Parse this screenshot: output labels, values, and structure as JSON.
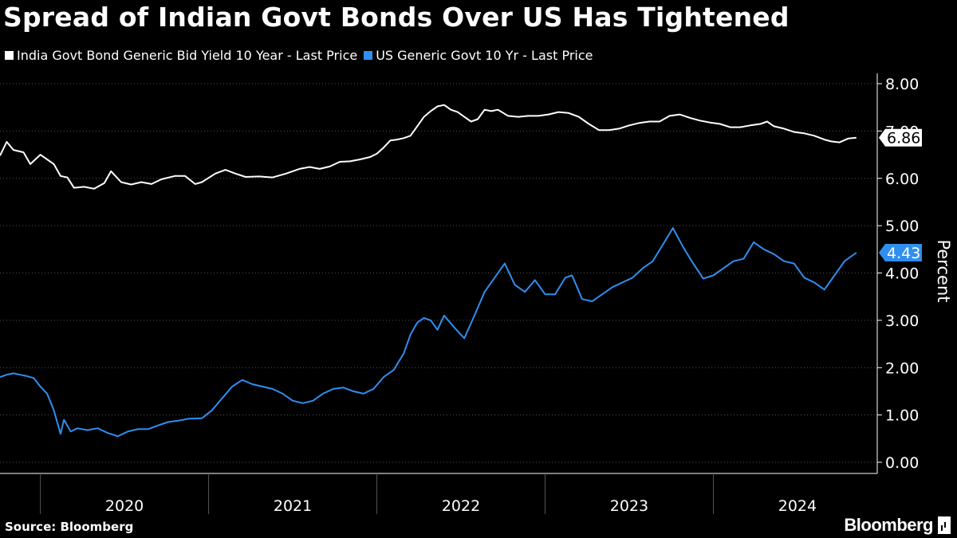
{
  "title": "Spread of Indian Govt Bonds Over US Has Tightened",
  "source": "Source: Bloomberg",
  "brand": "Bloomberg",
  "colors": {
    "india": "#ffffff",
    "us": "#2f8ff0",
    "background": "#000000",
    "grid": "#555555"
  },
  "chart_data": {
    "type": "line",
    "title": "Spread of Indian Govt Bonds Over US Has Tightened",
    "ylabel": "Percent",
    "ylim": [
      0,
      8
    ],
    "yticks": [
      "0.00",
      "1.00",
      "2.00",
      "3.00",
      "4.00",
      "5.00",
      "6.00",
      "7.00",
      "8.00"
    ],
    "xlim": [
      2019.76,
      2024.87
    ],
    "xticks": [
      "2020",
      "2021",
      "2022",
      "2023",
      "2024"
    ],
    "grid": true,
    "legend_position": "top-left",
    "series": [
      {
        "name": "India Govt Bond Generic Bid Yield 10 Year - Last Price",
        "color": "#ffffff",
        "last_value": "6.86",
        "points": [
          [
            2019.76,
            6.48
          ],
          [
            2019.8,
            6.77
          ],
          [
            2019.84,
            6.6
          ],
          [
            2019.9,
            6.55
          ],
          [
            2019.94,
            6.3
          ],
          [
            2020.0,
            6.5
          ],
          [
            2020.04,
            6.4
          ],
          [
            2020.08,
            6.3
          ],
          [
            2020.12,
            6.05
          ],
          [
            2020.16,
            6.02
          ],
          [
            2020.2,
            5.8
          ],
          [
            2020.26,
            5.82
          ],
          [
            2020.32,
            5.78
          ],
          [
            2020.38,
            5.9
          ],
          [
            2020.42,
            6.15
          ],
          [
            2020.48,
            5.92
          ],
          [
            2020.54,
            5.87
          ],
          [
            2020.6,
            5.92
          ],
          [
            2020.66,
            5.88
          ],
          [
            2020.72,
            5.98
          ],
          [
            2020.8,
            6.05
          ],
          [
            2020.86,
            6.05
          ],
          [
            2020.92,
            5.88
          ],
          [
            2020.96,
            5.92
          ],
          [
            2021.04,
            6.1
          ],
          [
            2021.1,
            6.18
          ],
          [
            2021.16,
            6.1
          ],
          [
            2021.22,
            6.03
          ],
          [
            2021.3,
            6.04
          ],
          [
            2021.38,
            6.02
          ],
          [
            2021.46,
            6.1
          ],
          [
            2021.54,
            6.2
          ],
          [
            2021.6,
            6.24
          ],
          [
            2021.66,
            6.2
          ],
          [
            2021.72,
            6.25
          ],
          [
            2021.78,
            6.35
          ],
          [
            2021.84,
            6.36
          ],
          [
            2021.9,
            6.4
          ],
          [
            2021.96,
            6.45
          ],
          [
            2022.0,
            6.52
          ],
          [
            2022.04,
            6.65
          ],
          [
            2022.08,
            6.8
          ],
          [
            2022.12,
            6.82
          ],
          [
            2022.16,
            6.85
          ],
          [
            2022.2,
            6.9
          ],
          [
            2022.24,
            7.1
          ],
          [
            2022.28,
            7.3
          ],
          [
            2022.32,
            7.42
          ],
          [
            2022.36,
            7.52
          ],
          [
            2022.4,
            7.55
          ],
          [
            2022.44,
            7.45
          ],
          [
            2022.48,
            7.4
          ],
          [
            2022.52,
            7.3
          ],
          [
            2022.56,
            7.2
          ],
          [
            2022.6,
            7.25
          ],
          [
            2022.64,
            7.45
          ],
          [
            2022.68,
            7.42
          ],
          [
            2022.72,
            7.45
          ],
          [
            2022.78,
            7.32
          ],
          [
            2022.84,
            7.3
          ],
          [
            2022.9,
            7.32
          ],
          [
            2022.96,
            7.32
          ],
          [
            2023.02,
            7.35
          ],
          [
            2023.08,
            7.4
          ],
          [
            2023.14,
            7.38
          ],
          [
            2023.2,
            7.3
          ],
          [
            2023.26,
            7.15
          ],
          [
            2023.32,
            7.02
          ],
          [
            2023.38,
            7.02
          ],
          [
            2023.44,
            7.05
          ],
          [
            2023.5,
            7.12
          ],
          [
            2023.56,
            7.17
          ],
          [
            2023.62,
            7.2
          ],
          [
            2023.68,
            7.2
          ],
          [
            2023.74,
            7.32
          ],
          [
            2023.8,
            7.35
          ],
          [
            2023.86,
            7.28
          ],
          [
            2023.92,
            7.22
          ],
          [
            2023.98,
            7.18
          ],
          [
            2024.04,
            7.15
          ],
          [
            2024.1,
            7.08
          ],
          [
            2024.16,
            7.08
          ],
          [
            2024.22,
            7.12
          ],
          [
            2024.28,
            7.15
          ],
          [
            2024.32,
            7.2
          ],
          [
            2024.36,
            7.1
          ],
          [
            2024.42,
            7.05
          ],
          [
            2024.48,
            6.98
          ],
          [
            2024.54,
            6.95
          ],
          [
            2024.6,
            6.9
          ],
          [
            2024.66,
            6.82
          ],
          [
            2024.7,
            6.78
          ],
          [
            2024.75,
            6.76
          ],
          [
            2024.8,
            6.84
          ],
          [
            2024.85,
            6.86
          ]
        ]
      },
      {
        "name": "US Generic Govt 10 Yr - Last Price",
        "color": "#2f8ff0",
        "last_value": "4.43",
        "points": [
          [
            2019.76,
            1.8
          ],
          [
            2019.8,
            1.85
          ],
          [
            2019.84,
            1.88
          ],
          [
            2019.88,
            1.85
          ],
          [
            2019.92,
            1.82
          ],
          [
            2019.96,
            1.78
          ],
          [
            2020.0,
            1.6
          ],
          [
            2020.04,
            1.45
          ],
          [
            2020.08,
            1.1
          ],
          [
            2020.12,
            0.6
          ],
          [
            2020.14,
            0.9
          ],
          [
            2020.18,
            0.65
          ],
          [
            2020.22,
            0.72
          ],
          [
            2020.28,
            0.68
          ],
          [
            2020.34,
            0.72
          ],
          [
            2020.4,
            0.62
          ],
          [
            2020.46,
            0.55
          ],
          [
            2020.52,
            0.65
          ],
          [
            2020.58,
            0.7
          ],
          [
            2020.64,
            0.7
          ],
          [
            2020.7,
            0.78
          ],
          [
            2020.76,
            0.85
          ],
          [
            2020.82,
            0.88
          ],
          [
            2020.88,
            0.92
          ],
          [
            2020.96,
            0.93
          ],
          [
            2021.02,
            1.1
          ],
          [
            2021.08,
            1.35
          ],
          [
            2021.14,
            1.6
          ],
          [
            2021.2,
            1.74
          ],
          [
            2021.26,
            1.65
          ],
          [
            2021.32,
            1.6
          ],
          [
            2021.38,
            1.55
          ],
          [
            2021.44,
            1.45
          ],
          [
            2021.5,
            1.3
          ],
          [
            2021.56,
            1.25
          ],
          [
            2021.62,
            1.3
          ],
          [
            2021.68,
            1.45
          ],
          [
            2021.74,
            1.55
          ],
          [
            2021.8,
            1.58
          ],
          [
            2021.86,
            1.5
          ],
          [
            2021.92,
            1.45
          ],
          [
            2021.98,
            1.55
          ],
          [
            2022.04,
            1.8
          ],
          [
            2022.1,
            1.95
          ],
          [
            2022.16,
            2.3
          ],
          [
            2022.2,
            2.7
          ],
          [
            2022.24,
            2.95
          ],
          [
            2022.28,
            3.05
          ],
          [
            2022.32,
            3.0
          ],
          [
            2022.36,
            2.8
          ],
          [
            2022.4,
            3.1
          ],
          [
            2022.46,
            2.85
          ],
          [
            2022.52,
            2.62
          ],
          [
            2022.58,
            3.1
          ],
          [
            2022.64,
            3.6
          ],
          [
            2022.7,
            3.9
          ],
          [
            2022.76,
            4.2
          ],
          [
            2022.82,
            3.75
          ],
          [
            2022.88,
            3.6
          ],
          [
            2022.94,
            3.85
          ],
          [
            2023.0,
            3.55
          ],
          [
            2023.06,
            3.55
          ],
          [
            2023.12,
            3.9
          ],
          [
            2023.16,
            3.95
          ],
          [
            2023.22,
            3.45
          ],
          [
            2023.28,
            3.4
          ],
          [
            2023.34,
            3.55
          ],
          [
            2023.4,
            3.7
          ],
          [
            2023.46,
            3.8
          ],
          [
            2023.52,
            3.9
          ],
          [
            2023.58,
            4.1
          ],
          [
            2023.64,
            4.25
          ],
          [
            2023.7,
            4.6
          ],
          [
            2023.76,
            4.95
          ],
          [
            2023.82,
            4.55
          ],
          [
            2023.88,
            4.2
          ],
          [
            2023.94,
            3.88
          ],
          [
            2024.0,
            3.95
          ],
          [
            2024.06,
            4.1
          ],
          [
            2024.12,
            4.25
          ],
          [
            2024.18,
            4.3
          ],
          [
            2024.24,
            4.65
          ],
          [
            2024.3,
            4.5
          ],
          [
            2024.36,
            4.4
          ],
          [
            2024.42,
            4.25
          ],
          [
            2024.48,
            4.2
          ],
          [
            2024.54,
            3.9
          ],
          [
            2024.6,
            3.8
          ],
          [
            2024.66,
            3.65
          ],
          [
            2024.72,
            3.95
          ],
          [
            2024.78,
            4.25
          ],
          [
            2024.85,
            4.43
          ]
        ]
      }
    ]
  }
}
